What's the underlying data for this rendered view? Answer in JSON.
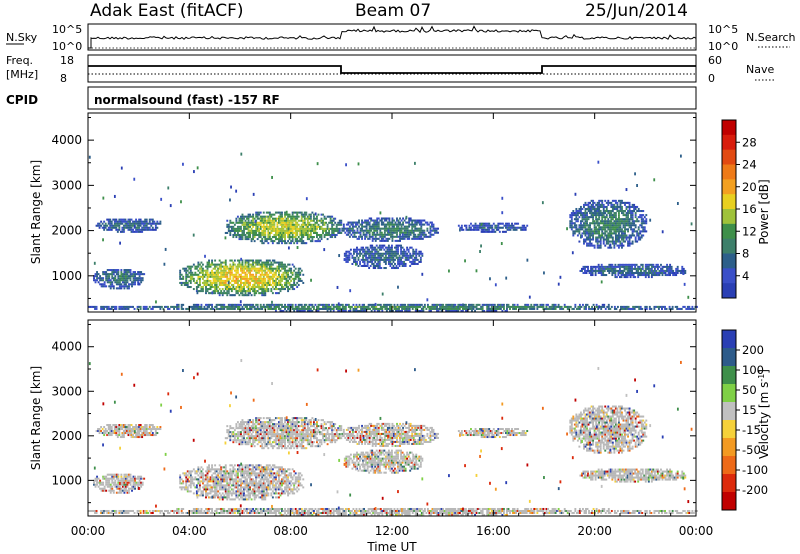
{
  "header": {
    "station": "Adak East (fitACF)",
    "beam": "Beam 07",
    "date": "25/Jun/2014"
  },
  "aux_panels": {
    "nsky_label": "N.Sky",
    "nsky_ticks": [
      "10^5",
      "10^0"
    ],
    "nsearch_label": "N.Search",
    "nsearch_ticks": [
      "10^5",
      "10^0"
    ],
    "freq_label": "Freq.",
    "freq_unit": "[MHz]",
    "freq_ticks": [
      "18",
      "8"
    ],
    "nave_label": "Nave",
    "nave_ticks": [
      "60",
      "0"
    ],
    "cpid_label": "CPID",
    "cpid_text": "normalsound (fast) -157 RF"
  },
  "colors": {
    "power_scale": [
      "#2a3fb4",
      "#3a4fc8",
      "#2d5f8a",
      "#3d7f6a",
      "#3e8f4a",
      "#9fc23a",
      "#e8d020",
      "#f3a020",
      "#ee7a18",
      "#e24a12",
      "#d81c0c",
      "#c00000"
    ],
    "velocity_scale": [
      "#2a3fb4",
      "#2d5b8a",
      "#3e8f4a",
      "#7fd046",
      "#c0c0c0",
      "#f5d13a",
      "#f39a22",
      "#ee6a18",
      "#dc2a0c",
      "#c00000"
    ],
    "ground_scatter": "#b8b8b8"
  },
  "chart_data": [
    {
      "type": "heatmap",
      "panel": "power",
      "title": "",
      "xlabel": "",
      "ylabel": "Slant Range [km]",
      "xlim": [
        "00:00",
        "24:00"
      ],
      "ylim": [
        200,
        4600
      ],
      "y_ticks": [
        "1000",
        "2000",
        "3000",
        "4000"
      ],
      "colorbar_label": "Power [dB]",
      "colorbar_ticks": [
        "4",
        "8",
        "12",
        "16",
        "20",
        "24",
        "28"
      ],
      "clim": [
        0,
        32
      ],
      "echo_regions": [
        {
          "t0": 0.3,
          "t1": 2.9,
          "r0": 1950,
          "r1": 2250,
          "level": 7
        },
        {
          "t0": 0.2,
          "t1": 2.2,
          "r0": 700,
          "r1": 1150,
          "level": 8
        },
        {
          "t0": 3.6,
          "t1": 8.5,
          "r0": 550,
          "r1": 1350,
          "level": 17
        },
        {
          "t0": 5.4,
          "t1": 10.0,
          "r0": 1700,
          "r1": 2400,
          "level": 15
        },
        {
          "t0": 10.0,
          "t1": 13.8,
          "r0": 1750,
          "r1": 2250,
          "level": 9
        },
        {
          "t0": 10.1,
          "t1": 13.2,
          "r0": 1150,
          "r1": 1650,
          "level": 7
        },
        {
          "t0": 14.6,
          "t1": 17.4,
          "r0": 1950,
          "r1": 2150,
          "level": 6
        },
        {
          "t0": 19.0,
          "t1": 22.0,
          "r0": 1600,
          "r1": 2650,
          "level": 9
        },
        {
          "t0": 19.4,
          "t1": 23.6,
          "r0": 950,
          "r1": 1250,
          "level": 7
        },
        {
          "t0": 0.0,
          "t1": 24.0,
          "r0": 200,
          "r1": 350,
          "level": 10
        }
      ]
    },
    {
      "type": "heatmap",
      "panel": "velocity",
      "title": "",
      "xlabel": "Time UT",
      "ylabel": "Slant Range [km]",
      "xlim": [
        "00:00",
        "24:00"
      ],
      "x_ticks": [
        "00:00",
        "04:00",
        "08:00",
        "12:00",
        "16:00",
        "20:00",
        "00:00"
      ],
      "ylim": [
        200,
        4600
      ],
      "y_ticks": [
        "1000",
        "2000",
        "3000",
        "4000"
      ],
      "colorbar_label": "Velocity [m s",
      "colorbar_label_exp": "-1",
      "colorbar_ticks": [
        "200",
        "100",
        "50",
        "15",
        "-15",
        "-50",
        "-100",
        "-200"
      ],
      "clim": [
        -250,
        250
      ]
    }
  ]
}
